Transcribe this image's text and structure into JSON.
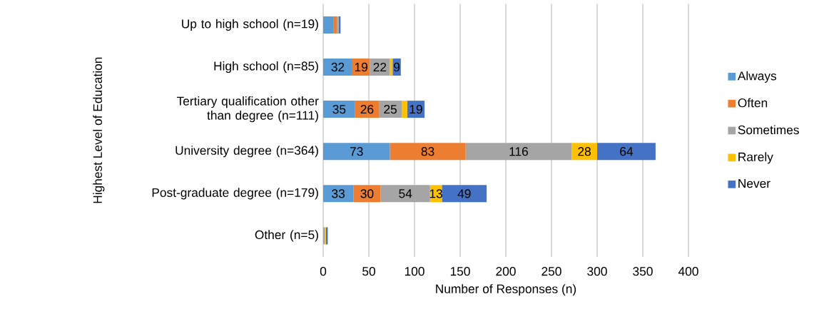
{
  "chart_data": {
    "type": "bar",
    "orientation": "horizontal",
    "stacked": true,
    "xlabel": "Number of Responses (n)",
    "ylabel": "Highest Level of Education",
    "categories": [
      "Up to high school (n=19)",
      "High school (n=85)",
      "Tertiary qualification other than degree (n=111)",
      "University degree (n=364)",
      "Post-graduate degree (n=179)",
      "Other (n=5)"
    ],
    "series": [
      {
        "name": "Always",
        "color": "#5b9bd5",
        "values": [
          11,
          32,
          35,
          73,
          33,
          0
        ],
        "value_labels": [
          null,
          "32",
          "35",
          "73",
          "33",
          null
        ]
      },
      {
        "name": "Often",
        "color": "#ed7d31",
        "values": [
          4,
          19,
          26,
          83,
          30,
          0
        ],
        "value_labels": [
          null,
          "19",
          "26",
          "83",
          "30",
          null
        ]
      },
      {
        "name": "Sometimes",
        "color": "#a5a5a5",
        "values": [
          2,
          22,
          25,
          116,
          54,
          2
        ],
        "value_labels": [
          null,
          "22",
          "25",
          "116",
          "54",
          null
        ]
      },
      {
        "name": "Rarely",
        "color": "#ffc000",
        "values": [
          0,
          3,
          6,
          28,
          13,
          1
        ],
        "value_labels": [
          null,
          null,
          null,
          "28",
          "13",
          null
        ]
      },
      {
        "name": "Never",
        "color": "#4472c4",
        "values": [
          2,
          9,
          19,
          64,
          49,
          2
        ],
        "value_labels": [
          null,
          "9",
          "19",
          "64",
          "49",
          null
        ]
      }
    ],
    "xlim": [
      0,
      400
    ],
    "xticks": [
      0,
      50,
      100,
      150,
      200,
      250,
      300,
      350,
      400
    ],
    "grid": "x",
    "legend": "right"
  }
}
